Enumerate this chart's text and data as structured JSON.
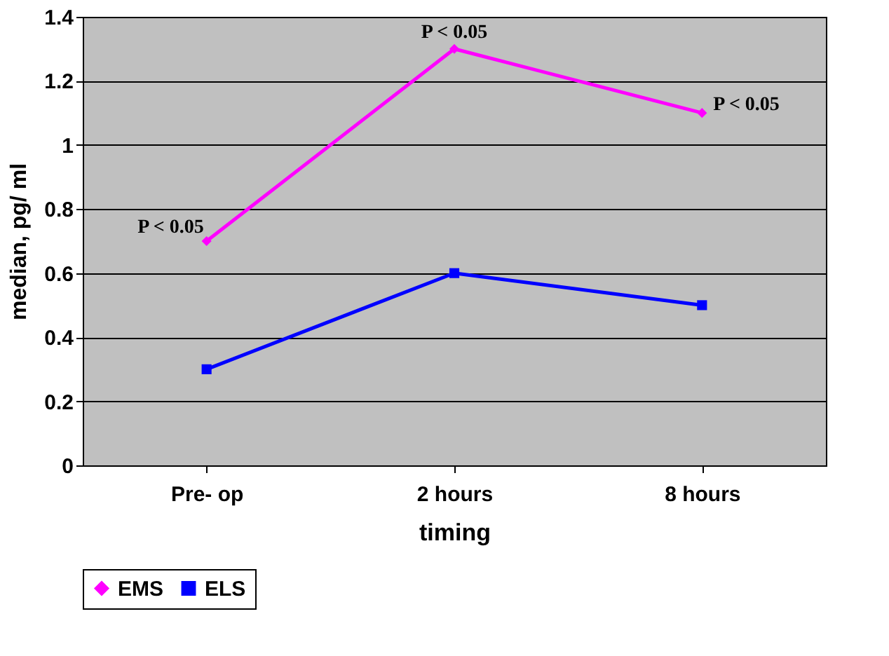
{
  "chart_data": {
    "type": "line",
    "xlabel": "timing",
    "ylabel": "median, pg/ ml",
    "categories": [
      "Pre- op",
      "2 hours",
      "8 hours"
    ],
    "series": [
      {
        "name": "EMS",
        "color": "#ff00ff",
        "marker": "diamond",
        "values": [
          0.7,
          1.3,
          1.1
        ]
      },
      {
        "name": "ELS",
        "color": "#0000ff",
        "marker": "square",
        "values": [
          0.3,
          0.6,
          0.5
        ]
      }
    ],
    "ylim": [
      0,
      1.4
    ],
    "yticks": [
      0,
      0.2,
      0.4,
      0.6,
      0.8,
      1,
      1.2,
      1.4
    ],
    "grid": "y",
    "legend": "bottom",
    "annotations": [
      {
        "text": "P < 0.05",
        "x": "Pre- op",
        "y": 0.7
      },
      {
        "text": "P < 0.05",
        "x": "2 hours",
        "y": 1.3
      },
      {
        "text": "P < 0.05",
        "x": "8 hours",
        "y": 1.1
      }
    ]
  }
}
